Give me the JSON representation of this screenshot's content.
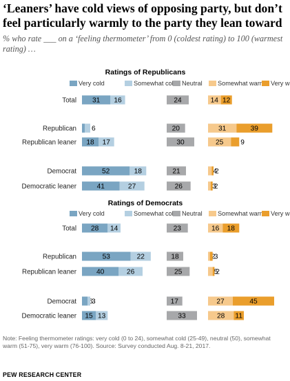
{
  "title": "‘Leaners’ have cold views of opposing party, but don’t feel particularly warmly to the party they lean toward",
  "subtitle": "% who rate ___ on a ‘feeling thermometer’ from 0 (coldest rating) to 100 (warmest rating) …",
  "note": "Note: Feeling thermometer ratings: very cold (0 to 24), somewhat cold (25-49), neutral (50), somewhat warm (51-75), very warm (76-100). Source: Survey conducted Aug. 8-21, 2017.",
  "source": "PEW RESEARCH CENTER",
  "colors": {
    "very_cold": "#7aa5c2",
    "somewhat_cold": "#b4cfe1",
    "neutral": "#a7a8aa",
    "somewhat_warm": "#f6c98c",
    "very_warm": "#ea9e2c"
  },
  "chart_data": [
    {
      "type": "bar",
      "title": "Ratings of Republicans",
      "legend": [
        "Very cold",
        "Somewhat cold",
        "Neutral",
        "Somewhat warm",
        "Very warm"
      ],
      "categories": [
        "Total",
        "Republican",
        "Republican leaner",
        "Democrat",
        "Democratic leaner"
      ],
      "series": [
        {
          "name": "Very cold",
          "values": [
            31,
            3,
            18,
            52,
            41
          ]
        },
        {
          "name": "Somewhat cold",
          "values": [
            16,
            6,
            17,
            18,
            27
          ]
        },
        {
          "name": "Neutral",
          "values": [
            24,
            20,
            30,
            21,
            26
          ]
        },
        {
          "name": "Somewhat warm",
          "values": [
            14,
            31,
            25,
            4,
            3
          ]
        },
        {
          "name": "Very warm",
          "values": [
            12,
            39,
            9,
            2,
            2
          ]
        }
      ]
    },
    {
      "type": "bar",
      "title": "Ratings of Democrats",
      "legend": [
        "Very cold",
        "Somewhat cold",
        "Neutral",
        "Somewhat warm",
        "Very warm"
      ],
      "categories": [
        "Total",
        "Republican",
        "Republican leaner",
        "Democrat",
        "Democratic leaner"
      ],
      "series": [
        {
          "name": "Very cold",
          "values": [
            28,
            53,
            40,
            6,
            15
          ]
        },
        {
          "name": "Somewhat cold",
          "values": [
            14,
            22,
            26,
            3,
            13
          ]
        },
        {
          "name": "Neutral",
          "values": [
            23,
            18,
            25,
            17,
            33
          ]
        },
        {
          "name": "Somewhat warm",
          "values": [
            16,
            2,
            5,
            27,
            28
          ]
        },
        {
          "name": "Very warm",
          "values": [
            18,
            3,
            2,
            45,
            11
          ]
        }
      ]
    }
  ]
}
